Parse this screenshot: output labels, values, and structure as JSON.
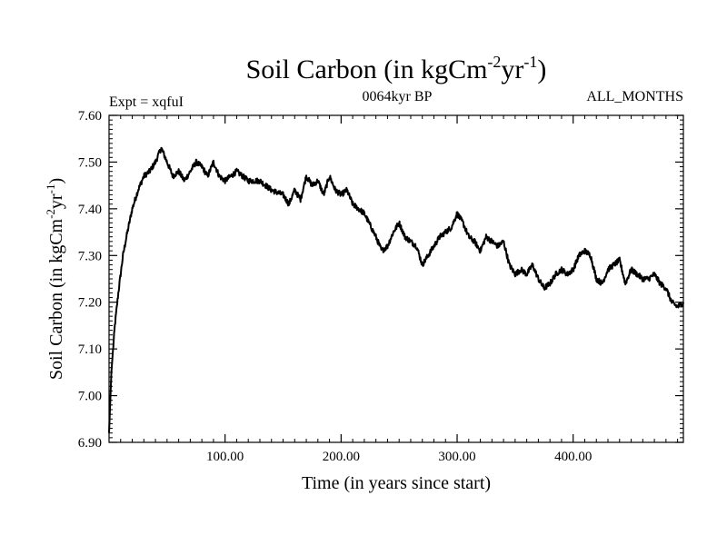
{
  "chart_data": {
    "type": "line",
    "title": {
      "base": "Soil Carbon (in kgCm",
      "sup1": "-2",
      "mid": "yr",
      "sup2": "-1",
      "end": ")"
    },
    "header": {
      "left": "Expt = xqfuI",
      "center": "0064kyr BP",
      "right": "ALL_MONTHS"
    },
    "xlabel": "Time (in years since start)",
    "ylabel": {
      "base": "Soil Carbon (in kgCm",
      "sup1": "-2",
      "mid": "yr",
      "sup2": "-1",
      "end": ")"
    },
    "xlim": [
      0,
      495
    ],
    "ylim": [
      6.9,
      7.6
    ],
    "x_ticks": [
      100,
      200,
      300,
      400
    ],
    "x_tick_labels": [
      "100.00",
      "200.00",
      "300.00",
      "400.00"
    ],
    "y_ticks": [
      6.9,
      7.0,
      7.1,
      7.2,
      7.3,
      7.4,
      7.5,
      7.6
    ],
    "y_tick_labels": [
      "6.90",
      "7.00",
      "7.10",
      "7.20",
      "7.30",
      "7.40",
      "7.50",
      "7.60"
    ],
    "series": [
      {
        "name": "Soil Carbon",
        "color": "#000000",
        "x": [
          0,
          2,
          5,
          8,
          12,
          15,
          20,
          25,
          30,
          35,
          40,
          45,
          50,
          55,
          60,
          65,
          70,
          75,
          80,
          85,
          90,
          95,
          100,
          110,
          120,
          130,
          140,
          150,
          155,
          160,
          165,
          170,
          175,
          180,
          185,
          190,
          195,
          200,
          205,
          210,
          220,
          230,
          235,
          240,
          245,
          250,
          255,
          260,
          265,
          270,
          275,
          280,
          285,
          290,
          295,
          300,
          305,
          310,
          315,
          320,
          325,
          330,
          335,
          340,
          345,
          350,
          355,
          360,
          365,
          370,
          375,
          380,
          385,
          390,
          395,
          400,
          405,
          410,
          415,
          420,
          425,
          430,
          435,
          440,
          445,
          450,
          455,
          460,
          465,
          470,
          475,
          480,
          485,
          490,
          495
        ],
        "y": [
          6.92,
          7.05,
          7.15,
          7.22,
          7.3,
          7.34,
          7.4,
          7.44,
          7.47,
          7.48,
          7.5,
          7.53,
          7.5,
          7.47,
          7.48,
          7.46,
          7.48,
          7.5,
          7.49,
          7.47,
          7.5,
          7.47,
          7.46,
          7.48,
          7.46,
          7.46,
          7.44,
          7.43,
          7.41,
          7.44,
          7.42,
          7.47,
          7.45,
          7.46,
          7.43,
          7.47,
          7.44,
          7.43,
          7.44,
          7.41,
          7.39,
          7.34,
          7.31,
          7.32,
          7.35,
          7.37,
          7.34,
          7.33,
          7.32,
          7.28,
          7.3,
          7.32,
          7.34,
          7.35,
          7.36,
          7.39,
          7.37,
          7.34,
          7.33,
          7.31,
          7.34,
          7.33,
          7.32,
          7.33,
          7.28,
          7.26,
          7.27,
          7.26,
          7.28,
          7.25,
          7.23,
          7.24,
          7.26,
          7.27,
          7.26,
          7.27,
          7.3,
          7.31,
          7.3,
          7.25,
          7.24,
          7.27,
          7.28,
          7.29,
          7.24,
          7.27,
          7.26,
          7.25,
          7.25,
          7.26,
          7.24,
          7.23,
          7.2,
          7.19,
          7.2
        ]
      }
    ]
  }
}
